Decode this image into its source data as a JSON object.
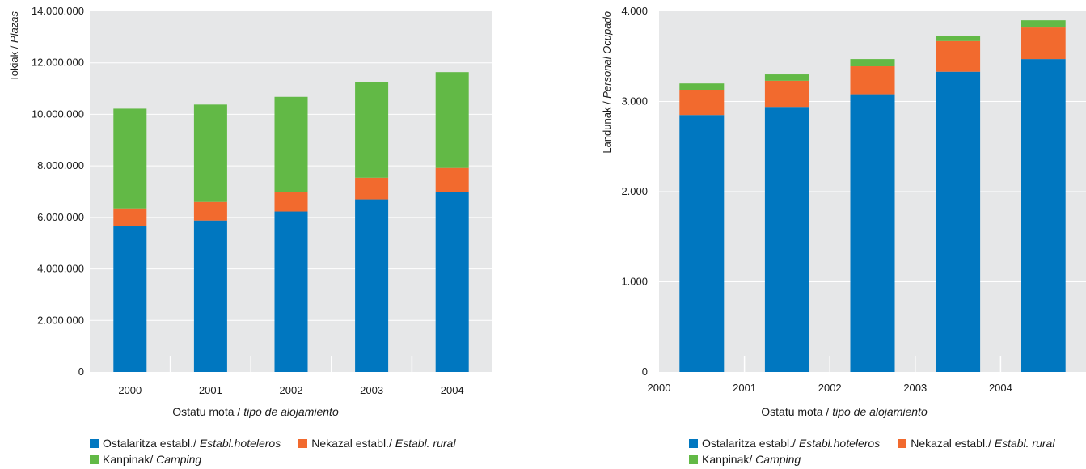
{
  "colors": {
    "plot_bg": "#e6e7e8",
    "grid": "#ffffff",
    "hoteleros": "#0077c0",
    "rural": "#f26a2e",
    "camping": "#62b946"
  },
  "chart_data": [
    {
      "type": "bar",
      "stacked": true,
      "categories": [
        "2000",
        "2001",
        "2002",
        "2003",
        "2004"
      ],
      "series": [
        {
          "key": "hoteleros",
          "name": "Ostalaritza establ./ Establ.hoteleros",
          "values": [
            5650000,
            5880000,
            6230000,
            6700000,
            7000000
          ]
        },
        {
          "key": "rural",
          "name": "Nekazal establ./ Establ. rural",
          "values": [
            700000,
            720000,
            740000,
            840000,
            920000
          ]
        },
        {
          "key": "camping",
          "name": "Kanpinak/ Camping",
          "values": [
            3870000,
            3780000,
            3710000,
            3710000,
            3720000
          ]
        }
      ],
      "ylim": [
        0,
        14000000
      ],
      "yticks": [
        "0",
        "2.000.000",
        "4.000.000",
        "6.000.000",
        "8.000.000",
        "10.000.000",
        "12.000.000",
        "14.000.000"
      ],
      "ylabel": {
        "eu": "Tokiak / ",
        "es": "Plazas"
      },
      "xlabel": {
        "eu": "Ostatu mota / ",
        "es": "tipo de alojamiento"
      },
      "grid": "horizontal",
      "legend": "bottom"
    },
    {
      "type": "bar",
      "stacked": true,
      "categories": [
        "2000",
        "2001",
        "2002",
        "2003",
        "2004"
      ],
      "series": [
        {
          "key": "hoteleros",
          "name": "Ostalaritza establ./ Establ.hoteleros",
          "values": [
            2850,
            2940,
            3080,
            3330,
            3470
          ]
        },
        {
          "key": "rural",
          "name": "Nekazal establ./ Establ. rural",
          "values": [
            280,
            290,
            310,
            340,
            350
          ]
        },
        {
          "key": "camping",
          "name": "Kanpinak/ Camping",
          "values": [
            70,
            70,
            80,
            60,
            80
          ]
        }
      ],
      "ylim": [
        0,
        4000
      ],
      "yticks": [
        "0",
        "1.000",
        "2.000",
        "3.000",
        "4.000"
      ],
      "ylabel": {
        "eu": "Landunak / ",
        "es": "Personal Ocupado"
      },
      "xlabel": {
        "eu": "Ostatu mota / ",
        "es": "tipo de alojamiento"
      },
      "grid": "horizontal",
      "legend": "bottom"
    }
  ],
  "legend": {
    "hoteleros": {
      "eu": "Ostalaritza establ./ ",
      "es": "Establ.hoteleros"
    },
    "rural": {
      "eu": "Nekazal establ./ ",
      "es": "Establ. rural"
    },
    "camping": {
      "eu": "Kanpinak/ ",
      "es": "Camping"
    }
  }
}
